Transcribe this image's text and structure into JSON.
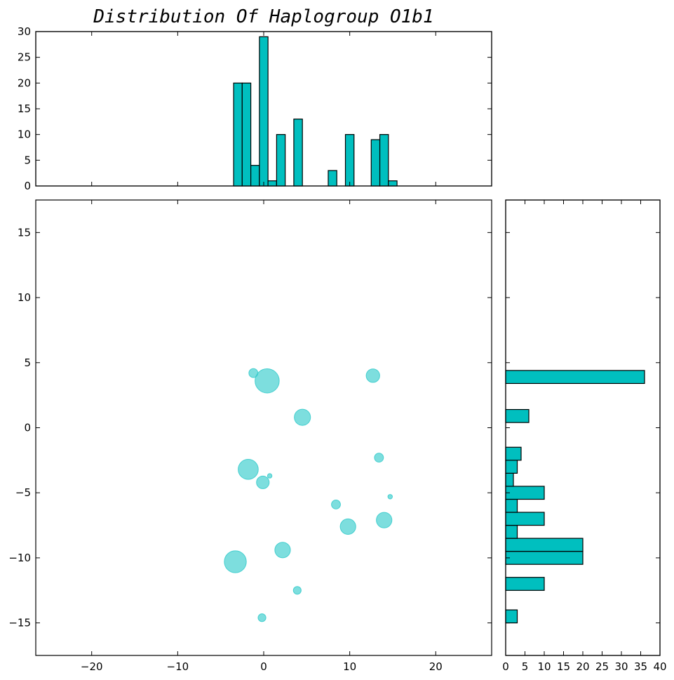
{
  "chart_data": [
    {
      "panel": "top-histogram",
      "type": "bar",
      "title": "Distribution Of Haplogroup O1b1",
      "xlim": [
        -26.5,
        26.5
      ],
      "ylim": [
        0,
        30
      ],
      "xticks": [
        "−20",
        "−10",
        "0",
        "10",
        "20"
      ],
      "yticks": [
        "0",
        "5",
        "10",
        "15",
        "20",
        "25",
        "30"
      ],
      "bin_width": 1.0,
      "bin_centers": [
        -3.0,
        -2.0,
        -1.0,
        0.0,
        1.0,
        2.0,
        4.0,
        8.0,
        10.0,
        13.0,
        14.0,
        15.0
      ],
      "counts": [
        20,
        20,
        4,
        29,
        1,
        10,
        13,
        3,
        10,
        9,
        10,
        1
      ]
    },
    {
      "panel": "scatter",
      "type": "scatter",
      "xlim": [
        -26.5,
        26.5
      ],
      "ylim": [
        -17.5,
        17.5
      ],
      "xticks": [
        "−20",
        "−10",
        "0",
        "10",
        "20"
      ],
      "yticks": [
        "−15",
        "−10",
        "−5",
        "0",
        "5",
        "10",
        "15"
      ],
      "points": [
        {
          "x": -1.2,
          "y": 4.2,
          "size": 4
        },
        {
          "x": 0.4,
          "y": 3.6,
          "size": 29
        },
        {
          "x": 12.7,
          "y": 4.0,
          "size": 9
        },
        {
          "x": 4.5,
          "y": 0.8,
          "size": 13
        },
        {
          "x": 13.4,
          "y": -2.3,
          "size": 4
        },
        {
          "x": -1.8,
          "y": -3.2,
          "size": 20
        },
        {
          "x": 0.7,
          "y": -3.7,
          "size": 1
        },
        {
          "x": -0.1,
          "y": -4.2,
          "size": 8
        },
        {
          "x": 14.7,
          "y": -5.3,
          "size": 1
        },
        {
          "x": 8.4,
          "y": -5.9,
          "size": 4
        },
        {
          "x": 14.0,
          "y": -7.1,
          "size": 12
        },
        {
          "x": 9.8,
          "y": -7.6,
          "size": 12
        },
        {
          "x": 2.2,
          "y": -9.4,
          "size": 12
        },
        {
          "x": -3.3,
          "y": -10.3,
          "size": 24
        },
        {
          "x": 3.9,
          "y": -12.5,
          "size": 3
        },
        {
          "x": -0.2,
          "y": -14.6,
          "size": 3
        }
      ]
    },
    {
      "panel": "right-histogram",
      "type": "bar",
      "orientation": "horizontal",
      "xlim": [
        0,
        40
      ],
      "ylim": [
        -17.5,
        17.5
      ],
      "xticks": [
        "0",
        "5",
        "10",
        "15",
        "20",
        "25",
        "30",
        "35",
        "40"
      ],
      "bin_width": 1.0,
      "bin_centers": [
        -14.5,
        -12.0,
        -10.0,
        -9.0,
        -8.0,
        -7.0,
        -6.0,
        -5.0,
        -4.0,
        -3.0,
        -2.0,
        0.9,
        3.9
      ],
      "counts": [
        3,
        10,
        20,
        20,
        3,
        10,
        3,
        10,
        2,
        3,
        4,
        6,
        36
      ]
    }
  ]
}
